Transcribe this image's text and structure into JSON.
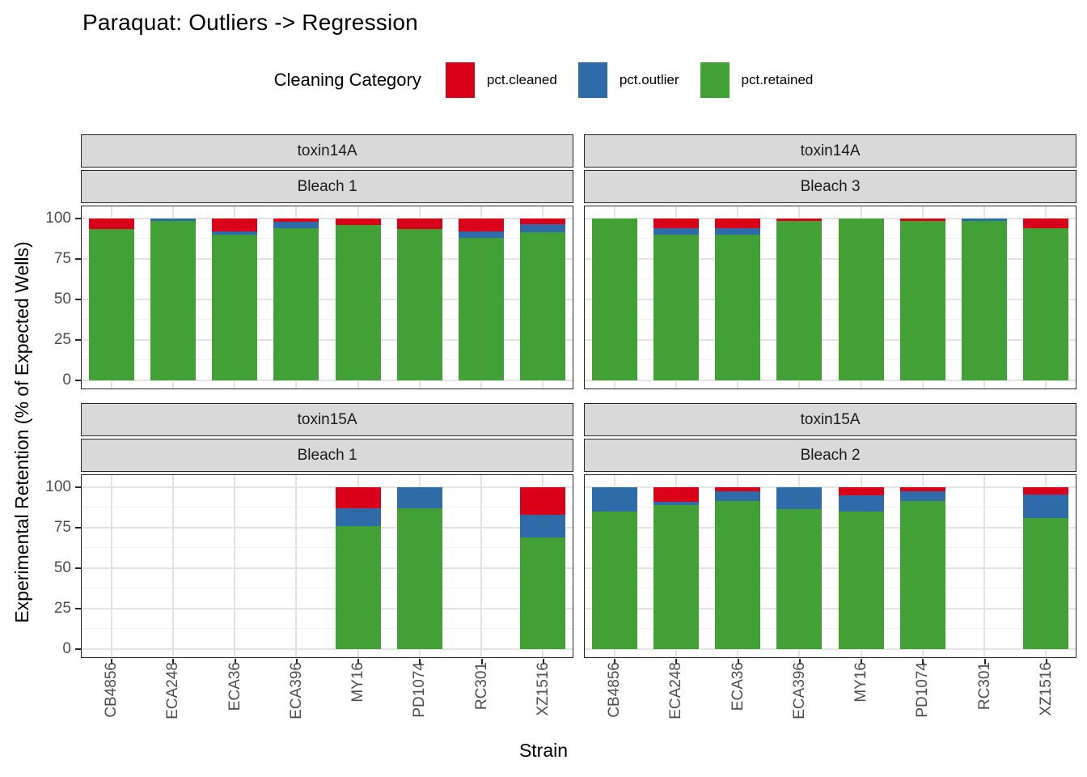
{
  "title": "Paraquat: Outliers -> Regression",
  "chart_data": {
    "type": "bar",
    "stacked": true,
    "title": "Paraquat: Outliers -> Regression",
    "xlabel": "Strain",
    "ylabel": "Experimental Retention (% of Expected Wells)",
    "ylim": [
      0,
      100
    ],
    "yticks": [
      0,
      25,
      50,
      75,
      100
    ],
    "yticks_minor": [
      12.5,
      37.5,
      62.5,
      87.5
    ],
    "grid": true,
    "legend": {
      "title": "Cleaning Category",
      "position": "top",
      "entries": [
        {
          "label": "pct.cleaned",
          "color": "#D90019"
        },
        {
          "label": "pct.outlier",
          "color": "#2E6BA8"
        },
        {
          "label": "pct.retained",
          "color": "#41A137"
        }
      ]
    },
    "categories": [
      "CB4856",
      "ECA248",
      "ECA36",
      "ECA396",
      "MY16",
      "PD1074",
      "RC301",
      "XZ1516"
    ],
    "panels": [
      {
        "facet_top": "toxin14A",
        "facet_bottom": "Bleach 1",
        "row": 0,
        "col": 0,
        "series": [
          {
            "name": "pct.cleaned",
            "values": [
              6.5,
              0,
              8,
              2,
              4,
              6.5,
              8,
              3.5
            ]
          },
          {
            "name": "pct.outlier",
            "values": [
              0,
              1.5,
              2,
              4,
              0,
              0,
              4,
              5
            ]
          },
          {
            "name": "pct.retained",
            "values": [
              93.5,
              98.5,
              90,
              94,
              96,
              93.5,
              88,
              91.5
            ]
          }
        ]
      },
      {
        "facet_top": "toxin14A",
        "facet_bottom": "Bleach 3",
        "row": 0,
        "col": 1,
        "series": [
          {
            "name": "pct.cleaned",
            "values": [
              0,
              6,
              6,
              1.5,
              0,
              1.5,
              0,
              6
            ]
          },
          {
            "name": "pct.outlier",
            "values": [
              0,
              4,
              4,
              0,
              0,
              0,
              1.5,
              0
            ]
          },
          {
            "name": "pct.retained",
            "values": [
              100,
              90,
              90,
              98.5,
              100,
              98.5,
              98.5,
              94
            ]
          }
        ]
      },
      {
        "facet_top": "toxin15A",
        "facet_bottom": "Bleach 1",
        "row": 1,
        "col": 0,
        "series": [
          {
            "name": "pct.cleaned",
            "values": [
              null,
              null,
              null,
              null,
              13,
              0,
              null,
              17
            ]
          },
          {
            "name": "pct.outlier",
            "values": [
              null,
              null,
              null,
              null,
              11,
              13,
              null,
              14
            ]
          },
          {
            "name": "pct.retained",
            "values": [
              null,
              null,
              null,
              null,
              76,
              87,
              null,
              69
            ]
          }
        ]
      },
      {
        "facet_top": "toxin15A",
        "facet_bottom": "Bleach 2",
        "row": 1,
        "col": 1,
        "series": [
          {
            "name": "pct.cleaned",
            "values": [
              0,
              9,
              2.5,
              0,
              5,
              2.5,
              null,
              4.5
            ]
          },
          {
            "name": "pct.outlier",
            "values": [
              15,
              2,
              6,
              13.5,
              10,
              6,
              null,
              14.5
            ]
          },
          {
            "name": "pct.retained",
            "values": [
              85,
              89,
              91.5,
              86.5,
              85,
              91.5,
              null,
              81
            ]
          }
        ]
      }
    ]
  }
}
